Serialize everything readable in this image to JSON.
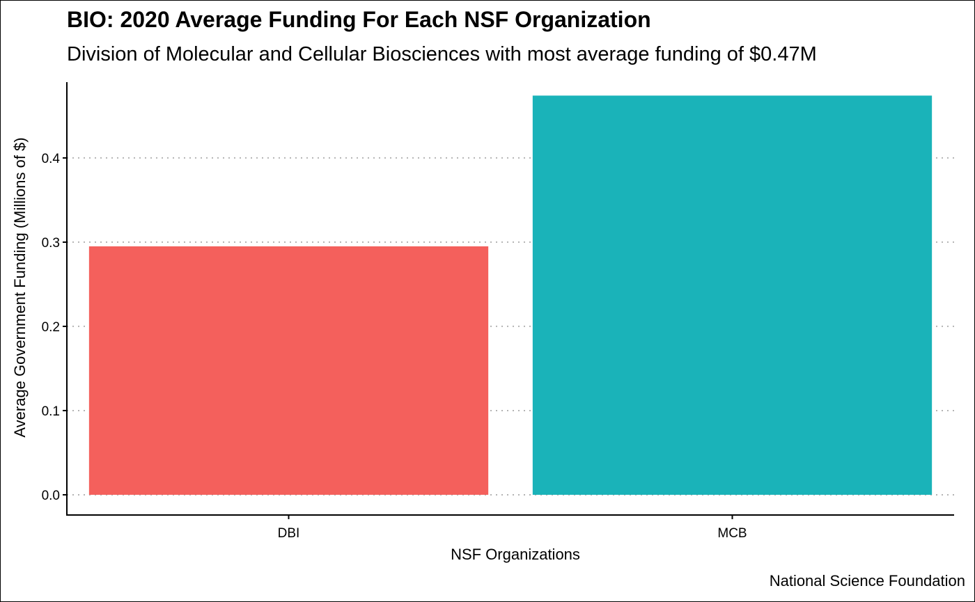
{
  "chart_data": {
    "type": "bar",
    "title": "BIO: 2020 Average Funding For Each NSF Organization",
    "subtitle": "Division of Molecular and Cellular Biosciences with most average funding of $0.47M",
    "caption": "National Science Foundation",
    "xlabel": "NSF Organizations",
    "ylabel": "Average Government Funding (Millions of $)",
    "categories": [
      "DBI",
      "MCB"
    ],
    "values": [
      0.295,
      0.474
    ],
    "colors": [
      "#F4605C",
      "#1AB3B9"
    ],
    "ylim": [
      -0.024,
      0.49
    ],
    "yticks": [
      0.0,
      0.1,
      0.2,
      0.3,
      0.4
    ],
    "ytick_labels": [
      "0.0",
      "0.1",
      "0.2",
      "0.3",
      "0.4"
    ],
    "grid": "horizontal dotted",
    "legend": "none"
  }
}
